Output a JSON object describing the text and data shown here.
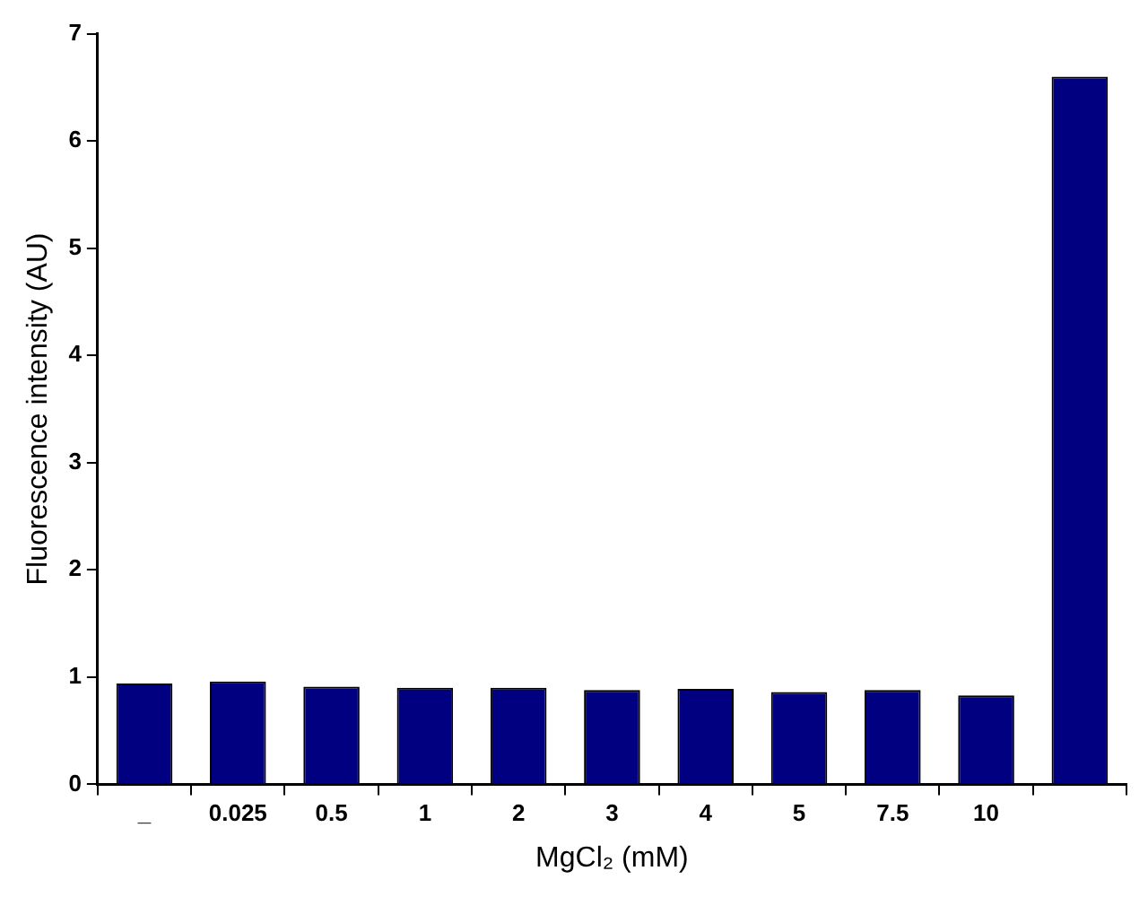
{
  "chart_data": {
    "type": "bar",
    "xlabel": "MgCl₂ (mM)",
    "ylabel": "Fluorescence intensity (AU)",
    "categories": [
      "_",
      "0.025",
      "0.5",
      "1",
      "2",
      "3",
      "4",
      "5",
      "7.5",
      "10",
      null
    ],
    "values": [
      0.94,
      0.96,
      0.91,
      0.9,
      0.9,
      0.88,
      0.89,
      0.86,
      0.88,
      0.83,
      6.6
    ],
    "color": "#000080",
    "ylim": [
      0,
      7
    ],
    "yticks": [
      0,
      1,
      2,
      3,
      4,
      5,
      6,
      7
    ],
    "grid": false,
    "legend": false
  }
}
